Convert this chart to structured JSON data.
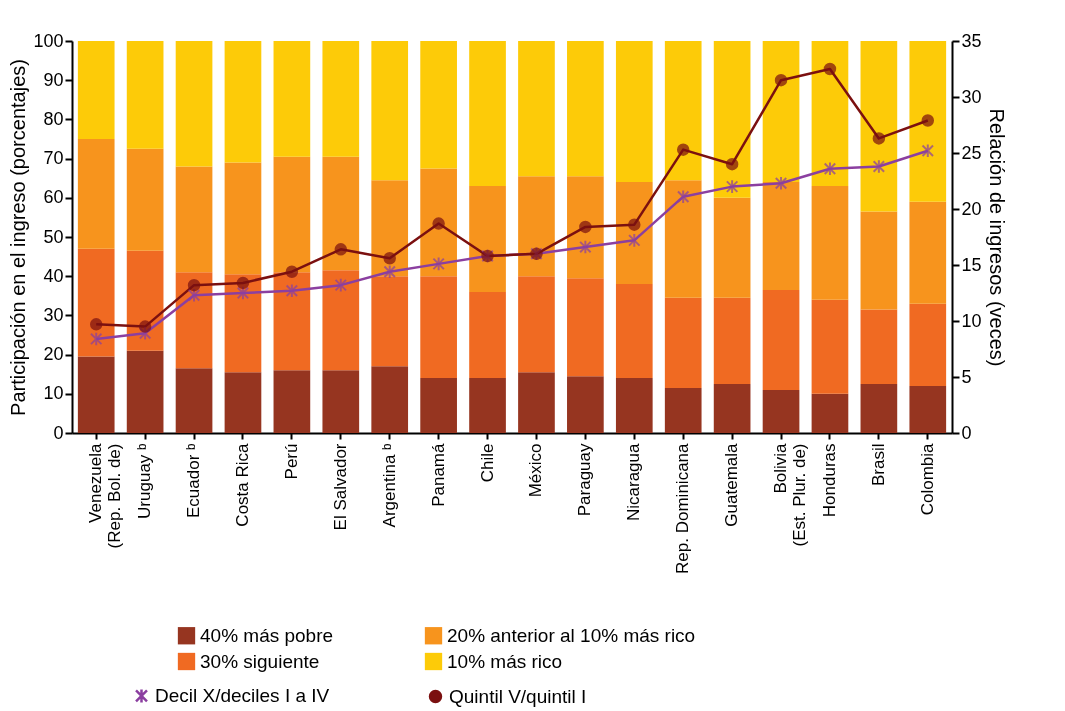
{
  "chart_data": {
    "type": "bar",
    "stacked": true,
    "legend": "bottom",
    "ylabel": "Participación en el ingreso (porcentajes)",
    "y2label": "Relación de ingresos (veces)",
    "categories": [
      "Venezuela\n(Rep. Bol. de)",
      "Uruguay ᵇ",
      "Ecuador ᵇ",
      "Costa Rica",
      "Perú",
      "El Salvador",
      "Argentina ᵇ",
      "Panamá",
      "Chile",
      "México",
      "Paraguay",
      "Nicaragua",
      "Rep. Dominicana",
      "Guatemala",
      "Bolivia\n(Est. Plur. de)",
      "Honduras",
      "Brasil",
      "Colombia"
    ],
    "ylim": [
      0,
      100
    ],
    "yticks": [
      0,
      10,
      20,
      30,
      40,
      50,
      60,
      70,
      80,
      90,
      100
    ],
    "y2lim": [
      0,
      35
    ],
    "y2ticks": [
      0,
      5,
      10,
      15,
      20,
      25,
      30,
      35
    ],
    "series": [
      {
        "name": "40% más pobre",
        "color": "#963520",
        "values": [
          19.5,
          21,
          16.5,
          15.5,
          16,
          16,
          17,
          14,
          14,
          15.5,
          14.5,
          14,
          11.5,
          12.5,
          11,
          10,
          12.5,
          12
        ]
      },
      {
        "name": "30% siguiente",
        "color": "#f06a22",
        "values": [
          27.5,
          25.5,
          24.5,
          25,
          25,
          25.5,
          23,
          26,
          22,
          24.5,
          25,
          24,
          23,
          22,
          25.5,
          24,
          19,
          21
        ]
      },
      {
        "name": "20% anterior al 10% más rico",
        "color": "#f7941d",
        "values": [
          28,
          26,
          27,
          28.5,
          29.5,
          29,
          24.5,
          27.5,
          27,
          25.5,
          26,
          26,
          30,
          25.5,
          27.5,
          29,
          25,
          26
        ]
      },
      {
        "name": "10% más rico",
        "color": "#fdcb08",
        "values": [
          25,
          27.5,
          32,
          31,
          29.5,
          29.5,
          35.5,
          32.5,
          37,
          34.5,
          34.5,
          36,
          35.5,
          40,
          36,
          37,
          43.5,
          41
        ]
      },
      {
        "name": "Decil X/deciles I a IV",
        "type": "line",
        "axis": "y2",
        "marker": "cross",
        "color": "#8b3fa0",
        "values": [
          8.4,
          8.9,
          12.3,
          12.5,
          12.7,
          13.2,
          14.4,
          15.1,
          15.8,
          16.0,
          16.6,
          17.2,
          21.1,
          22.0,
          22.3,
          23.6,
          23.8,
          25.2
        ]
      },
      {
        "name": "Quintil V/quintil I",
        "type": "line",
        "axis": "y2",
        "marker": "circle",
        "color": "#7b1010",
        "values": [
          9.7,
          9.5,
          13.2,
          13.4,
          14.4,
          16.4,
          15.6,
          18.7,
          15.8,
          16.0,
          18.4,
          18.6,
          25.3,
          24.0,
          31.5,
          32.5,
          26.3,
          27.9
        ]
      }
    ]
  }
}
